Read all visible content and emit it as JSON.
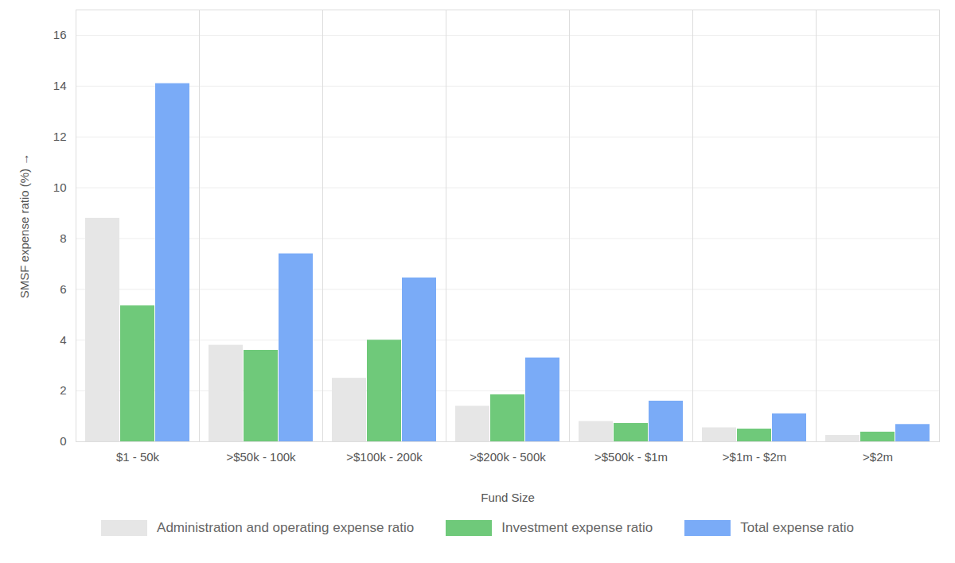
{
  "chart_data": {
    "type": "bar",
    "xlabel": "Fund Size",
    "ylabel": "SMSF expense ratio (%)",
    "categories": [
      "$1 - 50k",
      ">$50k - 100k",
      ">$100k - 200k",
      ">$200k - 500k",
      ">$500k - $1m",
      ">$1m - $2m",
      ">$2m"
    ],
    "series": [
      {
        "name": "Administration and operating expense ratio",
        "color": "#e6e6e6",
        "values": [
          8.8,
          3.8,
          2.5,
          1.4,
          0.8,
          0.55,
          0.25
        ]
      },
      {
        "name": "Investment expense ratio",
        "color": "#6fc97a",
        "values": [
          5.35,
          3.6,
          4.0,
          1.85,
          0.72,
          0.5,
          0.38
        ]
      },
      {
        "name": "Total expense ratio",
        "color": "#7aabf7",
        "values": [
          14.1,
          7.4,
          6.45,
          3.3,
          1.6,
          1.1,
          0.68
        ]
      }
    ],
    "ylim": [
      0,
      17
    ],
    "yticks": [
      0,
      2,
      4,
      6,
      8,
      10,
      12,
      14,
      16
    ],
    "grid": true,
    "legend": "bottom"
  }
}
